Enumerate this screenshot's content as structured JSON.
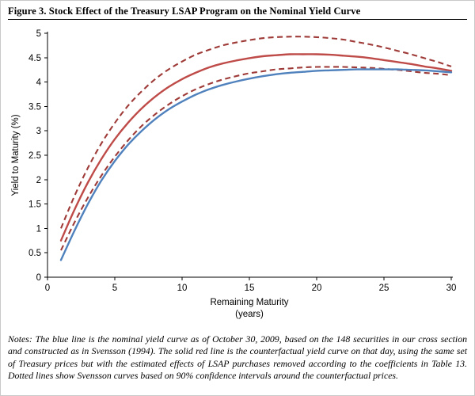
{
  "figure": {
    "title": "Figure 3.  Stock Effect of the Treasury LSAP Program on the Nominal Yield Curve",
    "notes": "Notes: The blue line is the nominal yield curve as of October 30, 2009, based on the 148 securities in our cross section and constructed as in Svensson (1994).  The solid red line is the counterfactual yield curve on that day, using the same set of Treasury prices but with the estimated effects of LSAP purchases removed according to the coefficients in Table 13.  Dotted lines show Svensson curves based on 90% confidence intervals around the counterfactual prices."
  },
  "chart_data": {
    "type": "line",
    "title": "",
    "xlabel": "Remaining Maturity",
    "xlabel_sub": "(years)",
    "ylabel": "Yield to Maturity (%)",
    "xlim": [
      0,
      30
    ],
    "ylim": [
      0,
      5
    ],
    "x_ticks": [
      0,
      5,
      10,
      15,
      20,
      25,
      30
    ],
    "y_ticks": [
      0,
      0.5,
      1,
      1.5,
      2,
      2.5,
      3,
      3.5,
      4,
      4.5,
      5
    ],
    "grid": false,
    "legend": "none",
    "x": [
      1,
      2,
      3,
      4,
      5,
      6,
      7,
      8,
      9,
      10,
      11,
      12,
      13,
      14,
      15,
      16,
      17,
      18,
      19,
      20,
      21,
      22,
      23,
      24,
      25,
      26,
      27,
      28,
      29,
      30
    ],
    "series": [
      {
        "name": "Nominal yield curve (October 30, 2009)",
        "color": "#4F81BD",
        "style": "solid",
        "values": [
          0.35,
          0.95,
          1.5,
          1.98,
          2.38,
          2.72,
          3.0,
          3.24,
          3.44,
          3.6,
          3.74,
          3.85,
          3.94,
          4.01,
          4.07,
          4.12,
          4.16,
          4.19,
          4.21,
          4.23,
          4.24,
          4.25,
          4.26,
          4.26,
          4.26,
          4.26,
          4.25,
          4.24,
          4.22,
          4.2
        ]
      },
      {
        "name": "Counterfactual yield curve (LSAP effects removed)",
        "color": "#BE4B48",
        "style": "solid",
        "values": [
          0.75,
          1.38,
          1.94,
          2.42,
          2.83,
          3.17,
          3.46,
          3.7,
          3.9,
          4.06,
          4.19,
          4.3,
          4.38,
          4.44,
          4.49,
          4.53,
          4.55,
          4.57,
          4.57,
          4.57,
          4.56,
          4.54,
          4.52,
          4.49,
          4.45,
          4.41,
          4.37,
          4.32,
          4.28,
          4.23
        ]
      },
      {
        "name": "90% confidence interval (upper)",
        "color": "#9E3B38",
        "style": "dashed",
        "values": [
          1.0,
          1.66,
          2.24,
          2.74,
          3.16,
          3.52,
          3.81,
          4.06,
          4.26,
          4.42,
          4.56,
          4.66,
          4.75,
          4.81,
          4.86,
          4.9,
          4.92,
          4.93,
          4.93,
          4.92,
          4.9,
          4.87,
          4.82,
          4.77,
          4.71,
          4.64,
          4.57,
          4.49,
          4.41,
          4.32
        ]
      },
      {
        "name": "90% confidence interval (lower)",
        "color": "#9E3B38",
        "style": "dashed",
        "values": [
          0.55,
          1.12,
          1.63,
          2.08,
          2.47,
          2.81,
          3.1,
          3.34,
          3.54,
          3.71,
          3.85,
          3.96,
          4.05,
          4.12,
          4.18,
          4.22,
          4.26,
          4.28,
          4.3,
          4.31,
          4.31,
          4.31,
          4.3,
          4.29,
          4.27,
          4.25,
          4.22,
          4.19,
          4.17,
          4.14
        ]
      }
    ]
  }
}
